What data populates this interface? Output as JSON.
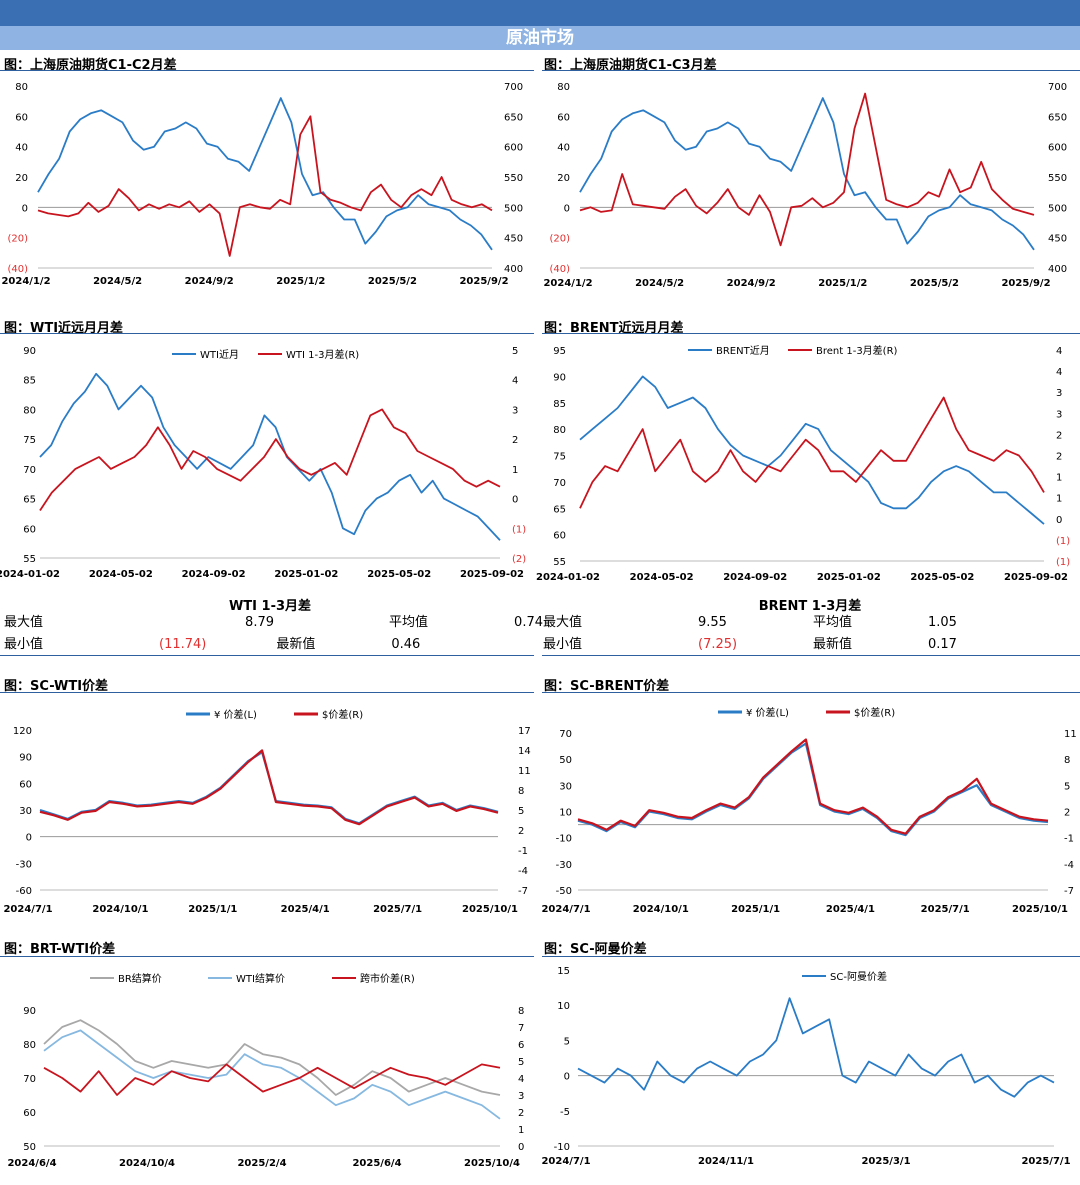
{
  "header": {
    "title": "原油市场"
  },
  "colors": {
    "blue": "#2a7cc7",
    "red": "#c8141e",
    "gray": "#a8a8a8",
    "lightblue": "#86b8e0",
    "neg": "#e03030"
  },
  "panels": [
    {
      "id": "p1",
      "title": "图：上海原油期货C1-C2月差"
    },
    {
      "id": "p2",
      "title": "图：上海原油期货C1-C3月差"
    },
    {
      "id": "p3",
      "title": "图：WTI近远月月差"
    },
    {
      "id": "p4",
      "title": "图：BRENT近远月月差"
    },
    {
      "id": "p5",
      "title": "图：SC-WTI价差"
    },
    {
      "id": "p6",
      "title": "图：SC-BRENT价差"
    },
    {
      "id": "p7",
      "title": "图：BRT-WTI价差"
    },
    {
      "id": "p8",
      "title": "图：SC-阿曼价差"
    }
  ],
  "stats": [
    {
      "title": "WTI 1-3月差",
      "max_label": "最大值",
      "max": "8.79",
      "avg_label": "平均值",
      "avg": "0.74",
      "min_label": "最小值",
      "min": "(11.74)",
      "last_label": "最新值",
      "last": "0.46"
    },
    {
      "title": "BRENT 1-3月差",
      "max_label": "最大值",
      "max": "9.55",
      "avg_label": "平均值",
      "avg": "1.05",
      "min_label": "最小值",
      "min": "(7.25)",
      "last_label": "最新值",
      "last": "0.17"
    }
  ],
  "chart_data": [
    {
      "id": "p1",
      "type": "line",
      "title": "上海原油期货C1-C2月差",
      "x_ticks": [
        "2024/1/2",
        "2024/5/2",
        "2024/9/2",
        "2025/1/2",
        "2025/5/2",
        "2025/9/2"
      ],
      "y_left_ticks": [
        "80",
        "60",
        "40",
        "20",
        "0",
        "(20)",
        "(40)"
      ],
      "y_left_range": [
        -40,
        80
      ],
      "y_right_ticks": [
        "700",
        "650",
        "600",
        "550",
        "500",
        "450",
        "400"
      ],
      "y_right_range": [
        400,
        700
      ],
      "series": [
        {
          "color": "blue",
          "axis": "right",
          "values": [
            525,
            555,
            580,
            625,
            645,
            655,
            660,
            650,
            640,
            610,
            595,
            600,
            625,
            630,
            640,
            630,
            605,
            600,
            580,
            575,
            560,
            600,
            640,
            680,
            640,
            555,
            520,
            525,
            500,
            480,
            480,
            440,
            460,
            485,
            495,
            500,
            520,
            505,
            500,
            495,
            480,
            470,
            455,
            430
          ]
        },
        {
          "color": "red",
          "axis": "left",
          "values": [
            -2,
            -4,
            -5,
            -6,
            -4,
            3,
            -3,
            1,
            12,
            6,
            -2,
            2,
            -1,
            2,
            0,
            4,
            -3,
            2,
            -4,
            -32,
            0,
            2,
            0,
            -1,
            5,
            2,
            48,
            60,
            10,
            5,
            3,
            0,
            -2,
            10,
            15,
            5,
            0,
            8,
            12,
            8,
            20,
            5,
            2,
            0,
            2,
            -2
          ]
        }
      ]
    },
    {
      "id": "p2",
      "type": "line",
      "title": "上海原油期货C1-C3月差",
      "x_ticks": [
        "2024/1/2",
        "2024/5/2",
        "2024/9/2",
        "2025/1/2",
        "2025/5/2",
        "2025/9/2"
      ],
      "y_left_ticks": [
        "80",
        "60",
        "40",
        "20",
        "0",
        "(20)",
        "(40)"
      ],
      "y_left_range": [
        -40,
        80
      ],
      "y_right_ticks": [
        "700",
        "650",
        "600",
        "550",
        "500",
        "450",
        "400"
      ],
      "y_right_range": [
        400,
        700
      ],
      "series": [
        {
          "color": "blue",
          "axis": "right",
          "values": [
            525,
            555,
            580,
            625,
            645,
            655,
            660,
            650,
            640,
            610,
            595,
            600,
            625,
            630,
            640,
            630,
            605,
            600,
            580,
            575,
            560,
            600,
            640,
            680,
            640,
            555,
            520,
            525,
            500,
            480,
            480,
            440,
            460,
            485,
            495,
            500,
            520,
            505,
            500,
            495,
            480,
            470,
            455,
            430
          ]
        },
        {
          "color": "red",
          "axis": "left",
          "values": [
            -2,
            0,
            -3,
            -2,
            22,
            2,
            1,
            0,
            -1,
            7,
            12,
            1,
            -4,
            3,
            12,
            0,
            -5,
            8,
            -3,
            -25,
            0,
            1,
            6,
            0,
            3,
            10,
            52,
            75,
            40,
            5,
            2,
            0,
            3,
            10,
            7,
            25,
            10,
            13,
            30,
            12,
            5,
            -1,
            -3,
            -5
          ]
        }
      ]
    },
    {
      "id": "p3",
      "type": "line",
      "title": "WTI近远月月差",
      "legend": [
        "WTI近月",
        "WTI 1-3月差(R)"
      ],
      "x_ticks": [
        "2024-01-02",
        "2024-05-02",
        "2024-09-02",
        "2025-01-02",
        "2025-05-02",
        "2025-09-02"
      ],
      "y_left_ticks": [
        "90",
        "85",
        "80",
        "75",
        "70",
        "65",
        "60",
        "55"
      ],
      "y_left_range": [
        55,
        90
      ],
      "y_right_ticks": [
        "5",
        "4",
        "3",
        "2",
        "1",
        "0",
        "(1)",
        "(2)"
      ],
      "y_right_range": [
        -2,
        5
      ],
      "series": [
        {
          "color": "blue",
          "axis": "left",
          "values": [
            72,
            74,
            78,
            81,
            83,
            86,
            84,
            80,
            82,
            84,
            82,
            77,
            74,
            72,
            70,
            72,
            71,
            70,
            72,
            74,
            79,
            77,
            72,
            70,
            68,
            70,
            66,
            60,
            59,
            63,
            65,
            66,
            68,
            69,
            66,
            68,
            65,
            64,
            63,
            62,
            60,
            58
          ]
        },
        {
          "color": "red",
          "axis": "left",
          "values": [
            63,
            66,
            68,
            70,
            71,
            72,
            70,
            71,
            72,
            74,
            77,
            74,
            70,
            73,
            72,
            70,
            69,
            68,
            70,
            72,
            75,
            72,
            70,
            69,
            70,
            71,
            69,
            74,
            79,
            80,
            77,
            76,
            73,
            72,
            71,
            70,
            68,
            67,
            68,
            67
          ]
        }
      ]
    },
    {
      "id": "p4",
      "type": "line",
      "title": "BRENT近远月月差",
      "legend": [
        "BRENT近月",
        "Brent 1-3月差(R)"
      ],
      "x_ticks": [
        "2024-01-02",
        "2024-05-02",
        "2024-09-02",
        "2025-01-02",
        "2025-05-02",
        "2025-09-02"
      ],
      "y_left_ticks": [
        "95",
        "90",
        "85",
        "80",
        "75",
        "70",
        "65",
        "60",
        "55"
      ],
      "y_left_range": [
        55,
        95
      ],
      "y_right_ticks": [
        "4",
        "4",
        "3",
        "3",
        "2",
        "2",
        "1",
        "1",
        "0",
        "(1)",
        "(1)"
      ],
      "series": [
        {
          "color": "blue",
          "axis": "left",
          "values": [
            78,
            80,
            82,
            84,
            87,
            90,
            88,
            84,
            85,
            86,
            84,
            80,
            77,
            75,
            74,
            73,
            75,
            78,
            81,
            80,
            76,
            74,
            72,
            70,
            66,
            65,
            65,
            67,
            70,
            72,
            73,
            72,
            70,
            68,
            68,
            66,
            64,
            62
          ]
        },
        {
          "color": "red",
          "axis": "left",
          "values": [
            65,
            70,
            73,
            72,
            76,
            80,
            72,
            75,
            78,
            72,
            70,
            72,
            76,
            72,
            70,
            73,
            72,
            75,
            78,
            76,
            72,
            72,
            70,
            73,
            76,
            74,
            74,
            78,
            82,
            86,
            80,
            76,
            75,
            74,
            76,
            75,
            72,
            68
          ]
        }
      ]
    },
    {
      "id": "p5",
      "type": "line",
      "title": "SC-WTI价差",
      "legend": [
        "¥ 价差(L)",
        "$价差(R)"
      ],
      "x_ticks": [
        "2024/7/1",
        "2024/10/1",
        "2025/1/1",
        "2025/4/1",
        "2025/7/1",
        "2025/10/1"
      ],
      "y_left_ticks": [
        "120",
        "90",
        "60",
        "30",
        "0",
        "-30",
        "-60"
      ],
      "y_left_range": [
        -60,
        120
      ],
      "y_right_ticks": [
        "17",
        "14",
        "11",
        "8",
        "5",
        "2",
        "-1",
        "-4",
        "-7"
      ],
      "series": [
        {
          "color": "blue",
          "axis": "left",
          "values": [
            30,
            25,
            20,
            28,
            30,
            40,
            38,
            35,
            36,
            38,
            40,
            38,
            45,
            55,
            70,
            85,
            95,
            40,
            38,
            36,
            35,
            33,
            20,
            15,
            25,
            35,
            40,
            45,
            35,
            38,
            30,
            35,
            32,
            28
          ]
        },
        {
          "color": "red",
          "axis": "left",
          "values": [
            28,
            24,
            19,
            27,
            29,
            39,
            37,
            34,
            35,
            37,
            39,
            37,
            44,
            54,
            69,
            84,
            97,
            39,
            37,
            35,
            34,
            32,
            19,
            14,
            24,
            34,
            39,
            44,
            34,
            37,
            29,
            34,
            31,
            27
          ]
        }
      ]
    },
    {
      "id": "p6",
      "type": "line",
      "title": "SC-BRENT价差",
      "legend": [
        "¥ 价差(L)",
        "$价差(R)"
      ],
      "x_ticks": [
        "2024/7/1",
        "2024/10/1",
        "2025/1/1",
        "2025/4/1",
        "2025/7/1",
        "2025/10/1"
      ],
      "y_left_ticks": [
        "70",
        "50",
        "30",
        "10",
        "-10",
        "-30",
        "-50"
      ],
      "y_left_range": [
        -50,
        70
      ],
      "y_right_ticks": [
        "11",
        "8",
        "5",
        "2",
        "-1",
        "-4",
        "-7"
      ],
      "series": [
        {
          "color": "blue",
          "axis": "left",
          "values": [
            3,
            0,
            -5,
            2,
            -2,
            10,
            8,
            5,
            4,
            10,
            15,
            12,
            20,
            35,
            45,
            55,
            62,
            15,
            10,
            8,
            12,
            5,
            -5,
            -8,
            5,
            10,
            20,
            25,
            30,
            15,
            10,
            5,
            3,
            2
          ]
        },
        {
          "color": "red",
          "axis": "left",
          "values": [
            4,
            1,
            -4,
            3,
            -1,
            11,
            9,
            6,
            5,
            11,
            16,
            13,
            21,
            36,
            46,
            56,
            65,
            16,
            11,
            9,
            13,
            6,
            -4,
            -7,
            6,
            11,
            21,
            26,
            35,
            16,
            11,
            6,
            4,
            3
          ]
        }
      ]
    },
    {
      "id": "p7",
      "type": "line",
      "title": "BRT-WTI价差",
      "legend": [
        "BR结算价",
        "WTI结算价",
        "跨市价差(R)"
      ],
      "x_ticks": [
        "2024/6/4",
        "2024/10/4",
        "2025/2/4",
        "2025/6/4",
        "2025/10/4"
      ],
      "y_left_ticks": [
        "90",
        "80",
        "70",
        "60",
        "50"
      ],
      "y_left_range": [
        50,
        90
      ],
      "y_right_ticks": [
        "8",
        "7",
        "6",
        "5",
        "4",
        "3",
        "2",
        "1",
        "0"
      ],
      "series": [
        {
          "color": "gray",
          "axis": "left",
          "values": [
            80,
            85,
            87,
            84,
            80,
            75,
            73,
            75,
            74,
            73,
            74,
            80,
            77,
            76,
            74,
            70,
            65,
            68,
            72,
            70,
            66,
            68,
            70,
            68,
            66,
            65
          ]
        },
        {
          "color": "lightblue",
          "axis": "left",
          "values": [
            78,
            82,
            84,
            80,
            76,
            72,
            70,
            72,
            71,
            70,
            71,
            77,
            74,
            73,
            70,
            66,
            62,
            64,
            68,
            66,
            62,
            64,
            66,
            64,
            62,
            58
          ]
        },
        {
          "color": "red",
          "axis": "left",
          "values": [
            73,
            70,
            66,
            72,
            65,
            70,
            68,
            72,
            70,
            69,
            74,
            70,
            66,
            68,
            70,
            73,
            70,
            67,
            70,
            73,
            71,
            70,
            68,
            71,
            74,
            73
          ]
        }
      ]
    },
    {
      "id": "p8",
      "type": "line",
      "title": "SC-阿曼价差",
      "legend": [
        "SC-阿曼价差"
      ],
      "x_ticks": [
        "2024/7/1",
        "2024/11/1",
        "2025/3/1",
        "2025/7/1"
      ],
      "y_left_ticks": [
        "15",
        "10",
        "5",
        "0",
        "-5",
        "-10"
      ],
      "y_left_range": [
        -10,
        15
      ],
      "series": [
        {
          "color": "blue",
          "axis": "left",
          "values": [
            1,
            0,
            -1,
            1,
            0,
            -2,
            2,
            0,
            -1,
            1,
            2,
            1,
            0,
            2,
            3,
            5,
            11,
            6,
            7,
            8,
            0,
            -1,
            2,
            1,
            0,
            3,
            1,
            0,
            2,
            3,
            -1,
            0,
            -2,
            -3,
            -1,
            0,
            -1
          ]
        }
      ]
    }
  ]
}
